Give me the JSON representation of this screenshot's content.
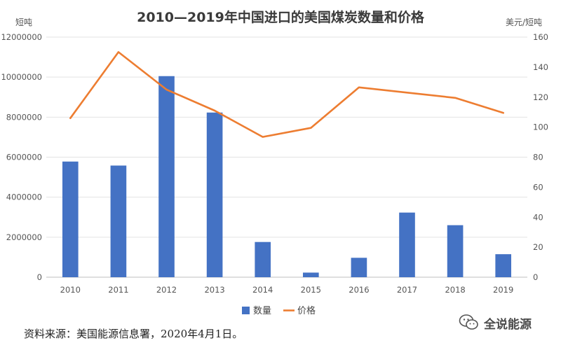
{
  "chart_data": {
    "type": "bar+line",
    "title": "2010—2019年中国进口的美国煤炭数量和价格",
    "y_left_label": "短吨",
    "y_right_label": "美元/短吨",
    "categories": [
      "2010",
      "2011",
      "2012",
      "2013",
      "2014",
      "2015",
      "2016",
      "2017",
      "2018",
      "2019"
    ],
    "y_left_ticks": [
      "0",
      "2000000",
      "4000000",
      "6000000",
      "8000000",
      "10000000",
      "12000000"
    ],
    "y_right_ticks": [
      "0",
      "20",
      "40",
      "60",
      "80",
      "100",
      "120",
      "140",
      "160"
    ],
    "ylim_left": [
      0,
      12000000
    ],
    "ylim_right": [
      0,
      160
    ],
    "grid": true,
    "legend_position": "bottom",
    "series": [
      {
        "name": "数量",
        "type": "bar",
        "axis": "left",
        "color": "#4472c4",
        "values": [
          5780000,
          5580000,
          10050000,
          8230000,
          1760000,
          230000,
          970000,
          3230000,
          2600000,
          1150000
        ]
      },
      {
        "name": "价格",
        "type": "line",
        "axis": "right",
        "color": "#ed7d31",
        "values": [
          106,
          150,
          125,
          111,
          93.5,
          99.5,
          126.5,
          123,
          119.5,
          109.5
        ]
      }
    ]
  },
  "footer": {
    "source_note": "资料来源：美国能源信息署，2020年4月1日。",
    "watermark_text": "全说能源",
    "watermark_icon": "wechat-icon"
  }
}
